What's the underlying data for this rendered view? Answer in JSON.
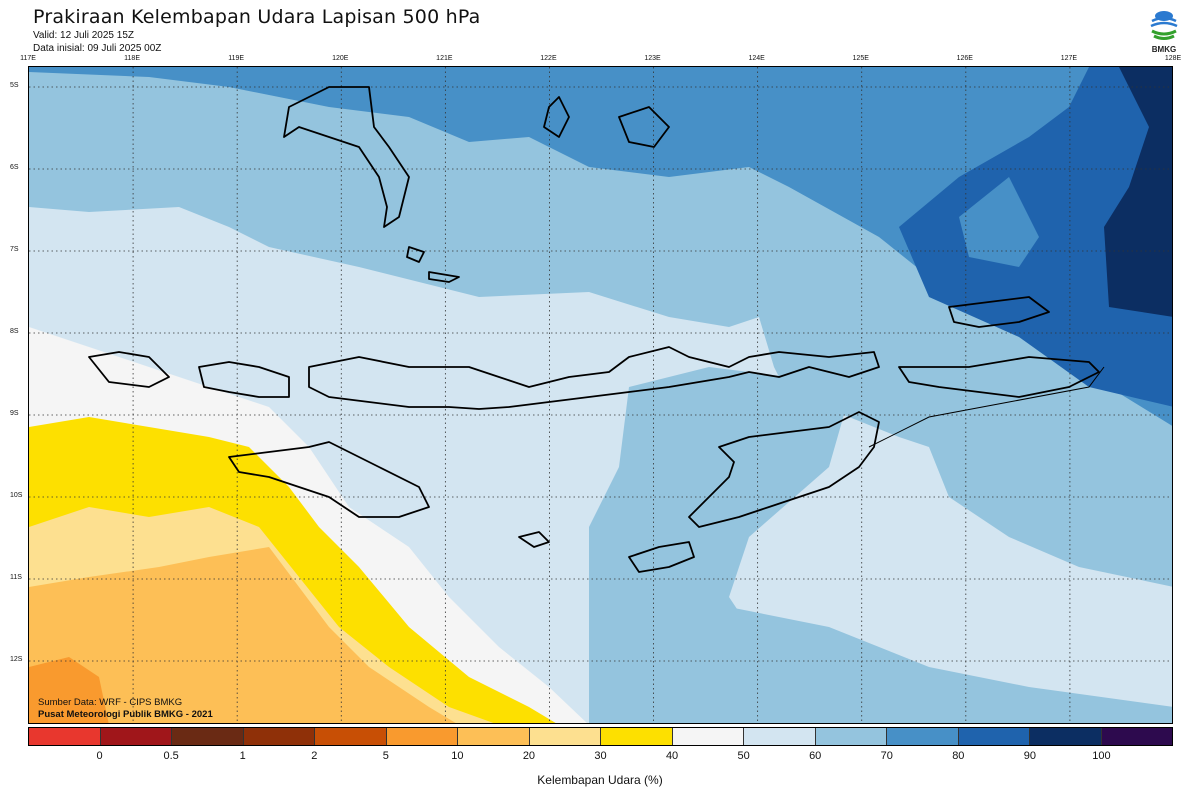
{
  "header": {
    "title": "Prakiraan Kelembapan Udara Lapisan 500 hPa",
    "valid": "Valid: 12 Juli 2025 15Z",
    "initial": "Data inisial: 09 Juli 2025 00Z",
    "logo_text": "BMKG"
  },
  "map": {
    "lon_labels": [
      "117E",
      "118E",
      "119E",
      "120E",
      "121E",
      "122E",
      "123E",
      "124E",
      "125E",
      "126E",
      "127E",
      "128E"
    ],
    "lat_labels": [
      "5S",
      "6S",
      "7S",
      "8S",
      "9S",
      "10S",
      "11S",
      "12S"
    ],
    "credit_source": "Sumber Data: WRF - CIPS BMKG",
    "credit_org": "Pusat Meteorologi Publik BMKG - 2021"
  },
  "legend": {
    "colors": [
      "#e8372e",
      "#a0161a",
      "#6a2a14",
      "#8f3008",
      "#c84f05",
      "#f99a2e",
      "#fdbf56",
      "#fde090",
      "#fde000",
      "#f5f5f5",
      "#d3e5f1",
      "#94c4de",
      "#4790c7",
      "#1f63ad",
      "#0c2e62",
      "#2d0a4e"
    ],
    "labels": [
      "0",
      "0.5",
      "1",
      "2",
      "5",
      "10",
      "20",
      "30",
      "40",
      "50",
      "60",
      "70",
      "80",
      "90",
      "100"
    ],
    "title": "Kelembapan Udara (%)"
  }
}
